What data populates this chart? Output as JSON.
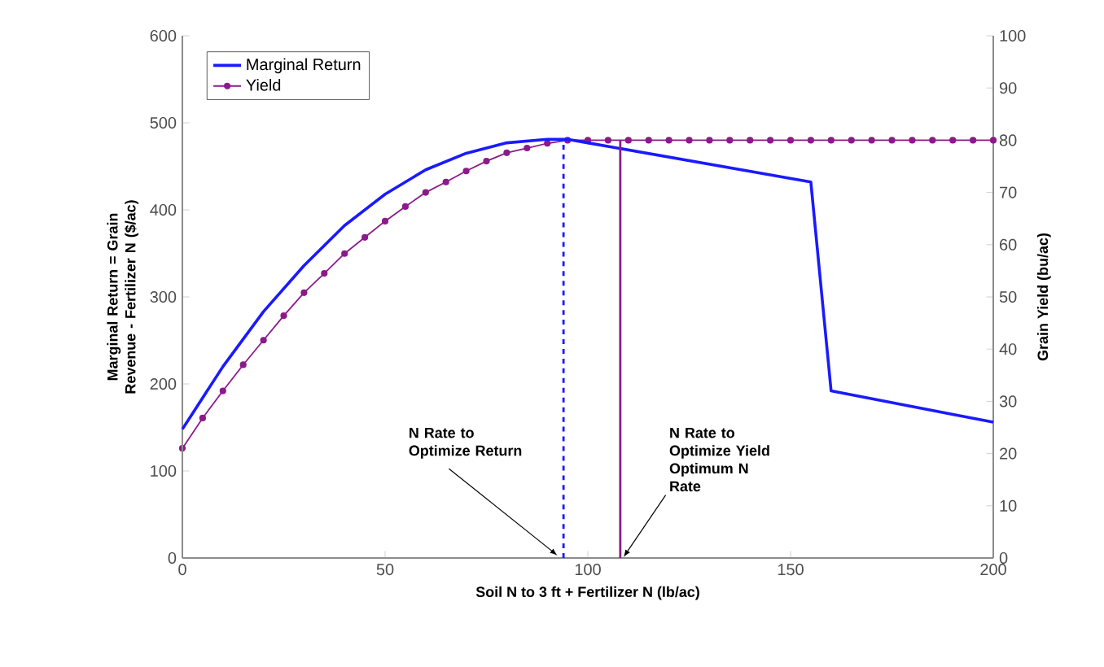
{
  "chart_data": {
    "type": "line",
    "xlabel": "Soil N to 3 ft + Fertilizer N (lb/ac)",
    "ylabel": "Marginal Return = Grain Revenue - Fertilizer N ($/ac)",
    "y2label": "Grain Yield (bu/ac)",
    "xlim": [
      0,
      200
    ],
    "xticks": [
      0,
      50,
      100,
      150,
      200
    ],
    "ylim": [
      0,
      600
    ],
    "yticks": [
      0,
      100,
      200,
      300,
      400,
      500,
      600
    ],
    "y2lim": [
      0,
      100
    ],
    "y2ticks": [
      0,
      10,
      20,
      30,
      40,
      50,
      60,
      70,
      80,
      90,
      100
    ],
    "legend": "top left",
    "grid": false,
    "series": [
      {
        "name": "Marginal Return",
        "color": "#1a1aff",
        "marker": "none",
        "x": [
          0,
          10,
          20,
          30,
          40,
          50,
          60,
          70,
          80,
          90,
          95,
          100,
          155,
          160,
          200
        ],
        "values": [
          148,
          220,
          283,
          336,
          382,
          418,
          446,
          465,
          477,
          481,
          481,
          477,
          432,
          192,
          156
        ]
      },
      {
        "name": "Yield",
        "color": "#8b1a8b",
        "marker": "circle",
        "axis": "y2",
        "x": [
          0,
          5,
          10,
          15,
          20,
          25,
          30,
          35,
          40,
          45,
          50,
          55,
          60,
          65,
          70,
          75,
          80,
          85,
          90,
          95,
          100,
          105,
          110,
          115,
          120,
          125,
          130,
          135,
          140,
          145,
          150,
          155,
          160,
          165,
          170,
          175,
          180,
          185,
          190,
          195,
          200
        ],
        "values": [
          21,
          26.8,
          32,
          37,
          41.7,
          46.4,
          50.8,
          54.5,
          58.3,
          61.4,
          64.5,
          67.3,
          70,
          72,
          74.1,
          76,
          77.6,
          78.5,
          79.4,
          80,
          80,
          80,
          80,
          80,
          80,
          80,
          80,
          80,
          80,
          80,
          80,
          80,
          80,
          80,
          80,
          80,
          80,
          80,
          80,
          80,
          80
        ]
      }
    ],
    "ref_lines": [
      {
        "axis": "x",
        "value": 94,
        "label": "N Rate to Optimize Return",
        "color": "#1a1aff",
        "line_style": "dashed"
      },
      {
        "axis": "x",
        "value": 108,
        "label": "N Rate to Optimize Yield Optimum N Rate",
        "color": "#8b1a8b",
        "line_style": "solid"
      }
    ]
  }
}
